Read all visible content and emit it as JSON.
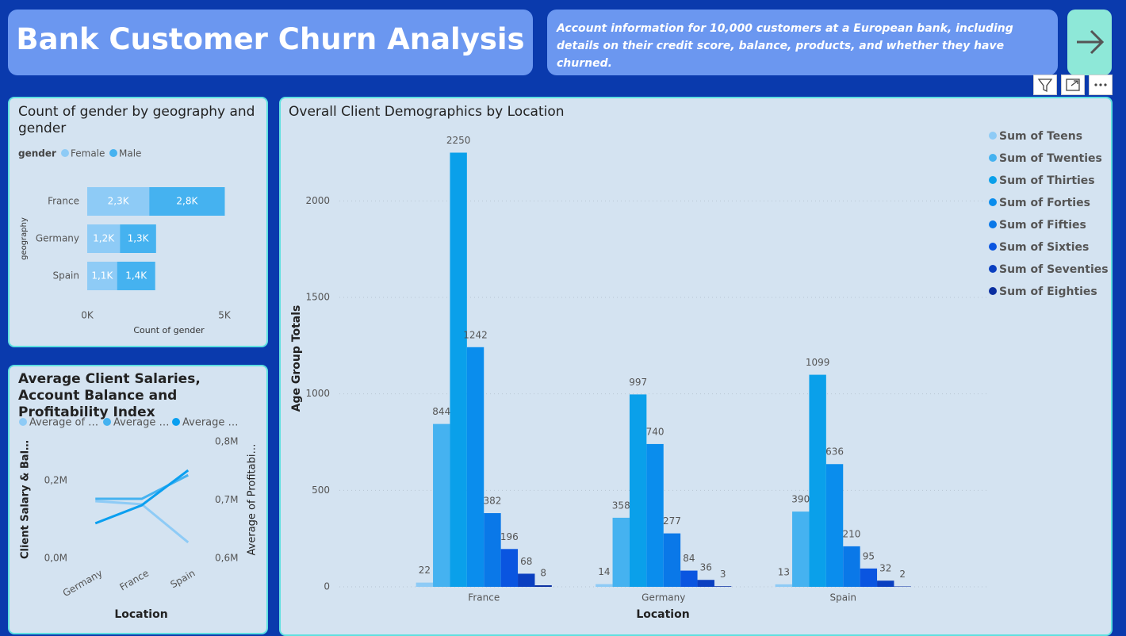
{
  "header": {
    "title": "Bank Customer Churn Analysis",
    "description": "Account information for 10,000 customers at a European bank, including details on their credit score, balance, products, and whether they have churned."
  },
  "chart_data": [
    {
      "type": "hbar-stacked",
      "title": "Count of gender by geography and gender",
      "legend_title": "gender",
      "categories": [
        "France",
        "Germany",
        "Spain"
      ],
      "series": [
        {
          "name": "Female",
          "color": "#8ecbf6",
          "values": [
            2261,
            1193,
            1089
          ],
          "value_labels": [
            "2,3K",
            "1,2K",
            "1,1K"
          ]
        },
        {
          "name": "Male",
          "color": "#45b2f0",
          "values": [
            2753,
            1316,
            1388
          ],
          "value_labels": [
            "2,8K",
            "1,3K",
            "1,4K"
          ]
        }
      ],
      "xlim": [
        0,
        5000
      ],
      "xticks": [
        {
          "value": 0,
          "label": "0K"
        },
        {
          "value": 5000,
          "label": "5K"
        }
      ],
      "xlabel": "Count of gender",
      "ylabel": "geography"
    },
    {
      "type": "line",
      "title": "Average Client Salaries, Account Balance and Profitability Index",
      "categories": [
        "Germany",
        "France",
        "Spain"
      ],
      "series": [
        {
          "name": "Average of …",
          "color": "#8ecbf6",
          "values": [
            147000,
            139000,
            41000
          ]
        },
        {
          "name": "Average …",
          "color": "#45b2f0",
          "values": [
            153000,
            153000,
            214000
          ]
        },
        {
          "name": "Average …",
          "color": "#0a9ff0",
          "values": [
            660000,
            691000,
            751000
          ],
          "axis": "y2"
        }
      ],
      "ylim": [
        0,
        300000
      ],
      "yticks": [
        {
          "value": 0,
          "label": "0,0M"
        },
        {
          "value": 200000,
          "label": "0,2M"
        }
      ],
      "y2lim": [
        600000,
        800000
      ],
      "y2ticks": [
        {
          "value": 600000,
          "label": "0,6M"
        },
        {
          "value": 700000,
          "label": "0,7M"
        },
        {
          "value": 800000,
          "label": "0,8M"
        }
      ],
      "xlabel": "Location",
      "ylabel": "Client Salary & Bal…",
      "y2label": "Average of Profitabi…"
    },
    {
      "type": "bar",
      "title": "Overall Client Demographics by Location",
      "categories": [
        "France",
        "Germany",
        "Spain"
      ],
      "series": [
        {
          "name": "Sum of Teens",
          "color": "#8ecbf6",
          "values": [
            22,
            14,
            13
          ]
        },
        {
          "name": "Sum of Twenties",
          "color": "#45b2f0",
          "values": [
            844,
            358,
            390
          ]
        },
        {
          "name": "Sum of Thirties",
          "color": "#0aa0ea",
          "values": [
            2250,
            997,
            1099
          ]
        },
        {
          "name": "Sum of Forties",
          "color": "#0a8ded",
          "values": [
            1242,
            740,
            636
          ]
        },
        {
          "name": "Sum of Fifties",
          "color": "#0a78e8",
          "values": [
            382,
            277,
            210
          ]
        },
        {
          "name": "Sum of Sixties",
          "color": "#0a55e0",
          "values": [
            196,
            84,
            95
          ]
        },
        {
          "name": "Sum of Seventies",
          "color": "#0a3fc0",
          "values": [
            68,
            36,
            32
          ]
        },
        {
          "name": "Sum of Eighties",
          "color": "#0a2ea0",
          "values": [
            8,
            3,
            2
          ]
        }
      ],
      "ylim": [
        0,
        2400
      ],
      "yticks": [
        0,
        500,
        1000,
        1500,
        2000
      ],
      "xlabel": "Location",
      "ylabel": "Age Group Totals",
      "grid": true,
      "legend_position": "top-right"
    }
  ]
}
